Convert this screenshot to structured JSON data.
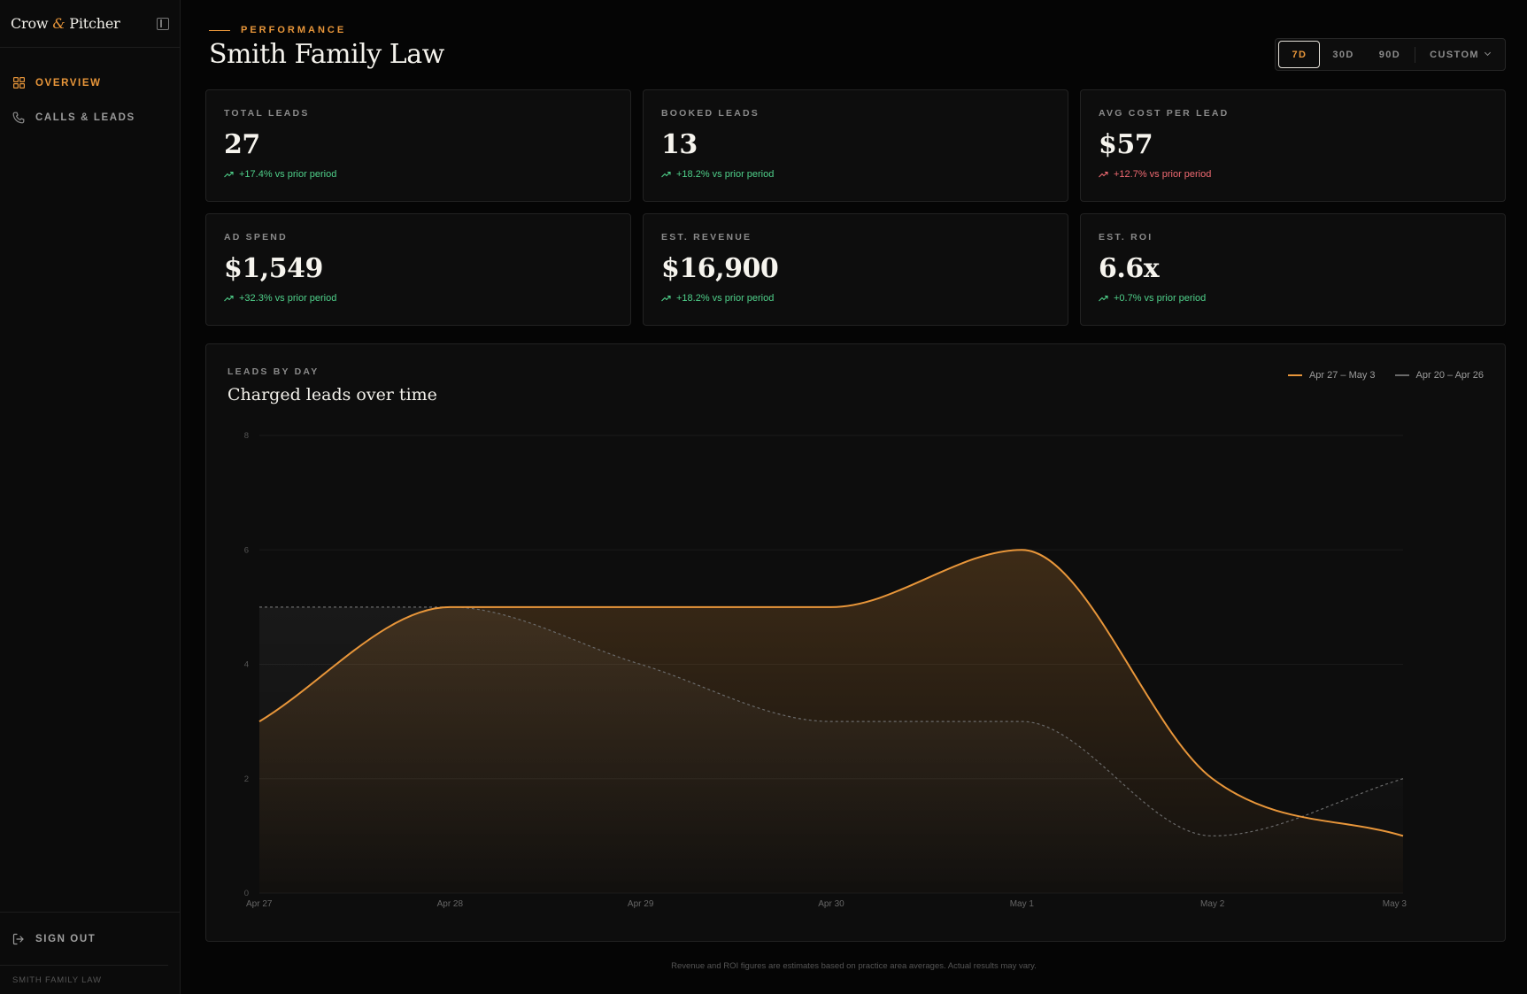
{
  "brand": {
    "name_a": "Crow",
    "amp": "&",
    "name_b": "Pitcher"
  },
  "sidebar": {
    "items": [
      {
        "label": "OVERVIEW",
        "icon": "grid-icon",
        "active": true
      },
      {
        "label": "CALLS & LEADS",
        "icon": "phone-icon",
        "active": false
      }
    ],
    "signout_label": "SIGN OUT",
    "client_label": "SMITH FAMILY LAW"
  },
  "header": {
    "eyebrow": "PERFORMANCE",
    "title": "Smith Family Law",
    "ranges": [
      "7D",
      "30D",
      "90D"
    ],
    "active_range": "7D",
    "custom_label": "CUSTOM"
  },
  "kpis": [
    {
      "label": "TOTAL LEADS",
      "value": "27",
      "delta": "+17.4% vs prior period",
      "trend": "good"
    },
    {
      "label": "BOOKED LEADS",
      "value": "13",
      "delta": "+18.2% vs prior period",
      "trend": "good"
    },
    {
      "label": "AVG COST PER LEAD",
      "value": "$57",
      "delta": "+12.7% vs prior period",
      "trend": "bad"
    },
    {
      "label": "AD SPEND",
      "value": "$1,549",
      "delta": "+32.3% vs prior period",
      "trend": "good"
    },
    {
      "label": "EST. REVENUE",
      "value": "$16,900",
      "delta": "+18.2% vs prior period",
      "trend": "good"
    },
    {
      "label": "EST. ROI",
      "value": "6.6x",
      "delta": "+0.7% vs prior period",
      "trend": "good"
    }
  ],
  "colors": {
    "accent": "#e8963a",
    "good": "#4fd08a",
    "bad": "#f06a72",
    "prior": "#6a6a6a"
  },
  "chart": {
    "eyebrow": "LEADS BY DAY",
    "title": "Charged leads over time"
  },
  "chart_data": {
    "type": "area",
    "categories": [
      "Apr 27",
      "Apr 28",
      "Apr 29",
      "Apr 30",
      "May 1",
      "May 2",
      "May 3"
    ],
    "ylim": [
      0,
      8
    ],
    "yticks": [
      0,
      2,
      4,
      6,
      8
    ],
    "series": [
      {
        "name": "Apr 27 – May 3",
        "values": [
          3,
          5,
          5,
          5,
          6,
          2,
          1
        ]
      },
      {
        "name": "Apr 20 – Apr 26",
        "values": [
          5,
          5,
          4,
          3,
          3,
          1,
          2
        ]
      }
    ],
    "legend": "top-right",
    "grid": true
  },
  "footnote": "Revenue and ROI figures are estimates based on practice area averages. Actual results may vary."
}
